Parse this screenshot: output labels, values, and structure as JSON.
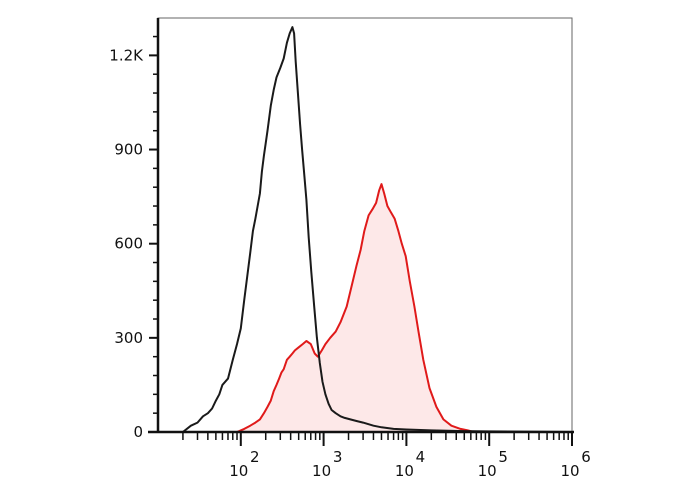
{
  "chart_data": {
    "type": "area",
    "title": "",
    "xlabel": "",
    "ylabel": "",
    "x_scale": "log",
    "xlim": [
      10,
      1000000
    ],
    "ylim": [
      0,
      1300
    ],
    "grid": false,
    "legend": "none",
    "x_ticks": [
      {
        "base": "10",
        "exp": "2",
        "value": 100
      },
      {
        "base": "10",
        "exp": "3",
        "value": 1000
      },
      {
        "base": "10",
        "exp": "4",
        "value": 10000
      },
      {
        "base": "10",
        "exp": "5",
        "value": 100000
      },
      {
        "base": "10",
        "exp": "6",
        "value": 1000000
      }
    ],
    "y_ticks": [
      {
        "label": "0",
        "value": 0
      },
      {
        "label": "300",
        "value": 300
      },
      {
        "label": "600",
        "value": 600
      },
      {
        "label": "900",
        "value": 900
      },
      {
        "label": "1.2K",
        "value": 1200
      }
    ],
    "series": [
      {
        "key": "control",
        "color": "#1a1a1a",
        "fill": "none",
        "points": [
          [
            20,
            0
          ],
          [
            25,
            20
          ],
          [
            30,
            30
          ],
          [
            35,
            50
          ],
          [
            40,
            60
          ],
          [
            45,
            75
          ],
          [
            50,
            100
          ],
          [
            55,
            120
          ],
          [
            60,
            150
          ],
          [
            70,
            170
          ],
          [
            80,
            230
          ],
          [
            90,
            280
          ],
          [
            100,
            330
          ],
          [
            110,
            420
          ],
          [
            120,
            500
          ],
          [
            130,
            570
          ],
          [
            140,
            640
          ],
          [
            150,
            680
          ],
          [
            170,
            760
          ],
          [
            180,
            830
          ],
          [
            190,
            880
          ],
          [
            200,
            920
          ],
          [
            210,
            960
          ],
          [
            230,
            1040
          ],
          [
            250,
            1090
          ],
          [
            270,
            1130
          ],
          [
            300,
            1160
          ],
          [
            330,
            1190
          ],
          [
            360,
            1240
          ],
          [
            390,
            1270
          ],
          [
            420,
            1290
          ],
          [
            440,
            1270
          ],
          [
            460,
            1180
          ],
          [
            490,
            1080
          ],
          [
            520,
            980
          ],
          [
            550,
            900
          ],
          [
            580,
            830
          ],
          [
            620,
            740
          ],
          [
            660,
            620
          ],
          [
            710,
            510
          ],
          [
            770,
            400
          ],
          [
            830,
            300
          ],
          [
            900,
            220
          ],
          [
            970,
            160
          ],
          [
            1050,
            120
          ],
          [
            1150,
            90
          ],
          [
            1250,
            70
          ],
          [
            1400,
            60
          ],
          [
            1600,
            50
          ],
          [
            1800,
            45
          ],
          [
            2100,
            40
          ],
          [
            2500,
            35
          ],
          [
            3000,
            30
          ],
          [
            4000,
            20
          ],
          [
            5000,
            15
          ],
          [
            7000,
            10
          ],
          [
            10000,
            8
          ],
          [
            20000,
            5
          ],
          [
            50000,
            3
          ],
          [
            100000,
            2
          ],
          [
            1000000,
            0
          ]
        ]
      },
      {
        "key": "stained",
        "color": "#e01a1a",
        "fill": "#fde8e8",
        "points": [
          [
            90,
            0
          ],
          [
            110,
            10
          ],
          [
            130,
            20
          ],
          [
            150,
            30
          ],
          [
            170,
            40
          ],
          [
            190,
            60
          ],
          [
            210,
            80
          ],
          [
            230,
            100
          ],
          [
            250,
            130
          ],
          [
            270,
            150
          ],
          [
            290,
            170
          ],
          [
            310,
            190
          ],
          [
            330,
            200
          ],
          [
            360,
            230
          ],
          [
            390,
            240
          ],
          [
            420,
            250
          ],
          [
            450,
            260
          ],
          [
            500,
            270
          ],
          [
            560,
            280
          ],
          [
            620,
            290
          ],
          [
            700,
            280
          ],
          [
            780,
            250
          ],
          [
            850,
            240
          ],
          [
            950,
            260
          ],
          [
            1050,
            280
          ],
          [
            1200,
            300
          ],
          [
            1400,
            320
          ],
          [
            1600,
            350
          ],
          [
            1900,
            400
          ],
          [
            2200,
            470
          ],
          [
            2500,
            530
          ],
          [
            2800,
            580
          ],
          [
            3100,
            640
          ],
          [
            3500,
            690
          ],
          [
            3900,
            710
          ],
          [
            4300,
            730
          ],
          [
            4700,
            770
          ],
          [
            5000,
            790
          ],
          [
            5400,
            760
          ],
          [
            5900,
            720
          ],
          [
            6500,
            700
          ],
          [
            7200,
            680
          ],
          [
            8000,
            640
          ],
          [
            8800,
            600
          ],
          [
            9800,
            560
          ],
          [
            11000,
            480
          ],
          [
            12500,
            400
          ],
          [
            14000,
            320
          ],
          [
            16000,
            230
          ],
          [
            19000,
            140
          ],
          [
            23000,
            80
          ],
          [
            28000,
            40
          ],
          [
            35000,
            20
          ],
          [
            45000,
            10
          ],
          [
            55000,
            5
          ],
          [
            65000,
            0
          ]
        ]
      }
    ]
  }
}
